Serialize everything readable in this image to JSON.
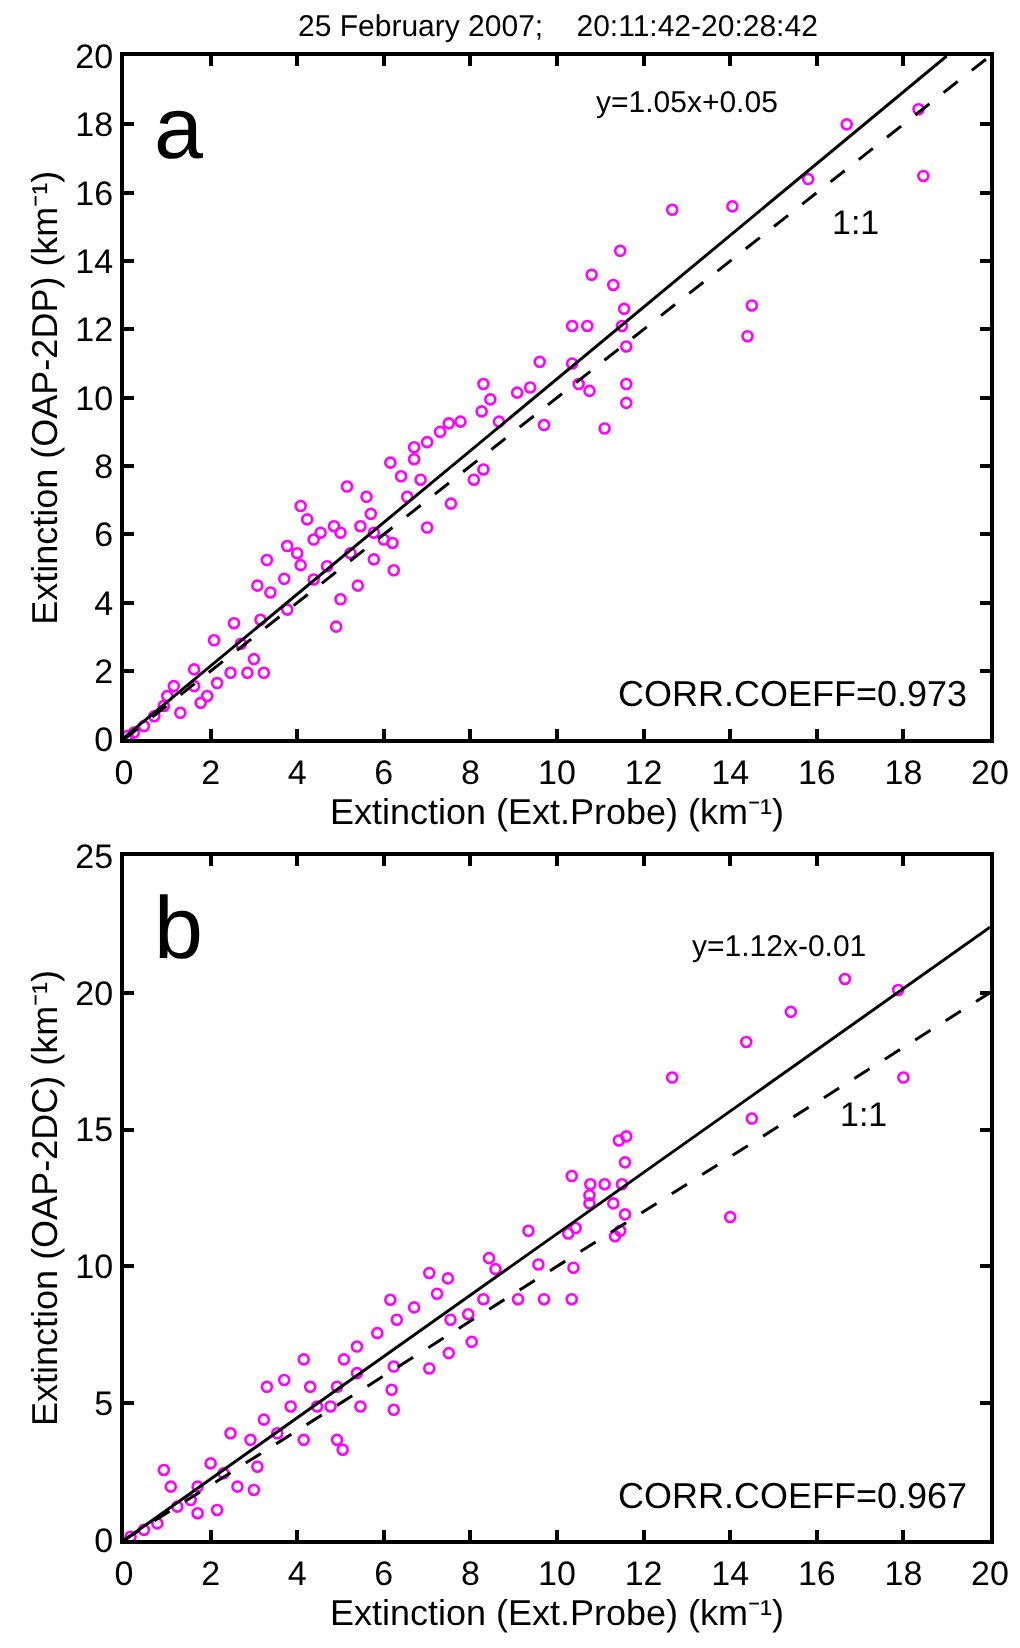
{
  "chart_data": [
    {
      "type": "scatter",
      "title": "25 February 2007;    20:11:42-20:28:42",
      "xlabel": "Extinction (Ext.Probe) (km⁻¹)",
      "ylabel": "Extinction (OAP-2DP) (km⁻¹)",
      "xlim": [
        0,
        20
      ],
      "xticks": [
        0,
        2,
        4,
        6,
        8,
        10,
        12,
        14,
        16,
        18,
        20
      ],
      "ylim": [
        0,
        20
      ],
      "yticks": [
        0,
        2,
        4,
        6,
        8,
        10,
        12,
        14,
        16,
        18,
        20
      ],
      "annotations": [
        "a",
        "y=1.05x+0.05",
        "1:1",
        "CORR.COEFF=0.973"
      ],
      "series": [
        {
          "marker": "circle",
          "color": "#ff00ff",
          "x": [
            16.69,
            18.35,
            18.46,
            15.8,
            14.05,
            12.66,
            14.5,
            14.4,
            11.46,
            10.8,
            11.3,
            11.55,
            11.5,
            11.6,
            11.6,
            11.6,
            11.1,
            10.7,
            10.35,
            10.35,
            10.5,
            10.75,
            9.6,
            9.38,
            9.08,
            9.7,
            8.3,
            8.46,
            8.66,
            8.26,
            8.08,
            8.3,
            7.77,
            7.5,
            7.3,
            7.0,
            6.7,
            6.7,
            6.15,
            6.4,
            6.85,
            6.54,
            7.55,
            7.0,
            6.2,
            6.23,
            5.15,
            5.6,
            5.7,
            5.0,
            5.23,
            5.4,
            5.0,
            4.9,
            4.38,
            4.0,
            4.08,
            3.7,
            3.38,
            3.08,
            3.3,
            3.77,
            3.15,
            2.54,
            2.7,
            2.08,
            3.0,
            3.23,
            2.85,
            2.46,
            2.15,
            1.62,
            1.62,
            1.15,
            1.0,
            0.92,
            1.3,
            1.77,
            1.92,
            0.7,
            0.46,
            0.23,
            0.08,
            4.23,
            4.54,
            4.85,
            4.08,
            3.77,
            5.46,
            5.77,
            6.0,
            4.69,
            4.38,
            5.77
          ],
          "values": [
            18.0,
            18.44,
            16.49,
            16.4,
            15.6,
            15.5,
            12.7,
            11.8,
            14.3,
            13.6,
            13.3,
            12.6,
            12.1,
            11.5,
            10.4,
            9.85,
            9.1,
            12.1,
            12.1,
            11.0,
            10.4,
            10.2,
            11.05,
            10.3,
            10.15,
            9.2,
            10.4,
            9.95,
            9.3,
            9.6,
            7.6,
            7.9,
            9.3,
            9.25,
            9.0,
            8.7,
            8.55,
            8.2,
            8.1,
            7.7,
            7.6,
            7.1,
            6.9,
            6.2,
            5.75,
            4.95,
            7.4,
            7.1,
            6.6,
            6.05,
            5.45,
            4.5,
            4.1,
            3.3,
            5.85,
            5.45,
            5.1,
            4.7,
            4.3,
            4.5,
            5.25,
            3.8,
            3.5,
            3.4,
            2.8,
            2.9,
            2.35,
            1.95,
            1.95,
            1.95,
            1.65,
            2.05,
            1.56,
            1.56,
            1.27,
            0.98,
            0.78,
            1.07,
            1.27,
            0.68,
            0.39,
            0.2,
            0.1,
            6.44,
            6.05,
            6.24,
            6.83,
            5.66,
            6.24,
            6.05,
            5.85,
            5.07,
            4.68,
            5.27
          ]
        },
        {
          "type": "line",
          "marker": "none",
          "line_style": "solid",
          "color": "#000000",
          "x": [
            0,
            19
          ],
          "values": [
            0.05,
            20
          ]
        },
        {
          "type": "line",
          "marker": "none",
          "line_style": "dashed",
          "color": "#000000",
          "x": [
            0,
            20
          ],
          "values": [
            0,
            20
          ]
        }
      ]
    },
    {
      "type": "scatter",
      "xlabel": "Extinction (Ext.Probe) (km⁻¹)",
      "ylabel": "Extinction (OAP-2DC) (km⁻¹)",
      "xlim": [
        0,
        20
      ],
      "xticks": [
        0,
        2,
        4,
        6,
        8,
        10,
        12,
        14,
        16,
        18,
        20
      ],
      "ylim": [
        0,
        25
      ],
      "yticks": [
        0,
        5,
        10,
        15,
        20,
        25
      ],
      "annotations": [
        "b",
        "y=1.12x-0.01",
        "1:1",
        "CORR.COEFF=0.967"
      ],
      "series": [
        {
          "marker": "circle",
          "color": "#ff00ff",
          "x": [
            16.65,
            17.88,
            15.4,
            14.37,
            12.66,
            18.0,
            14.5,
            14.0,
            11.6,
            11.43,
            11.57,
            11.5,
            11.57,
            11.46,
            11.34,
            11.3,
            11.1,
            10.77,
            10.75,
            10.75,
            10.34,
            10.43,
            10.26,
            10.38,
            10.34,
            9.7,
            9.57,
            9.34,
            9.1,
            8.43,
            8.58,
            8.3,
            7.95,
            8.03,
            7.48,
            7.05,
            7.23,
            7.54,
            7.5,
            7.05,
            6.7,
            6.15,
            6.3,
            5.85,
            6.23,
            6.18,
            6.23,
            5.38,
            5.08,
            5.38,
            4.92,
            5.46,
            4.92,
            5.05,
            4.15,
            4.3,
            3.85,
            3.3,
            3.23,
            3.54,
            4.15,
            2.92,
            2.46,
            3.08,
            3.0,
            2.3,
            2.0,
            1.7,
            1.54,
            0.92,
            1.08,
            1.23,
            1.7,
            0.77,
            0.46,
            0.15,
            2.15,
            2.62,
            3.7,
            4.46,
            4.77
          ],
          "values": [
            20.5,
            20.1,
            19.3,
            18.2,
            16.9,
            16.9,
            15.4,
            11.8,
            14.75,
            14.6,
            13.8,
            13.0,
            11.9,
            11.3,
            11.1,
            12.3,
            13.0,
            13.0,
            12.6,
            12.3,
            13.3,
            11.4,
            11.2,
            9.95,
            8.8,
            8.8,
            10.07,
            11.3,
            8.8,
            10.3,
            9.9,
            8.8,
            8.25,
            7.24,
            9.56,
            9.76,
            9.0,
            8.05,
            6.83,
            6.27,
            8.5,
            8.78,
            8.05,
            7.56,
            6.34,
            5.49,
            4.76,
            7.07,
            6.6,
            6.1,
            5.6,
            4.88,
            3.66,
            3.3,
            6.6,
            5.6,
            4.88,
            5.6,
            4.4,
            3.9,
            3.66,
            3.66,
            3.9,
            2.68,
            1.83,
            2.44,
            2.8,
            1.95,
            1.46,
            2.56,
            1.95,
            1.22,
            0.98,
            0.61,
            0.37,
            0.12,
            1.1,
            1.95,
            5.85,
            4.88,
            4.88
          ]
        },
        {
          "type": "line",
          "marker": "none",
          "line_style": "solid",
          "color": "#000000",
          "x": [
            0.01,
            20
          ],
          "values": [
            0.0,
            22.39
          ]
        },
        {
          "type": "line",
          "marker": "none",
          "line_style": "dashed",
          "color": "#000000",
          "x": [
            0,
            20
          ],
          "values": [
            0,
            20
          ]
        }
      ]
    }
  ]
}
